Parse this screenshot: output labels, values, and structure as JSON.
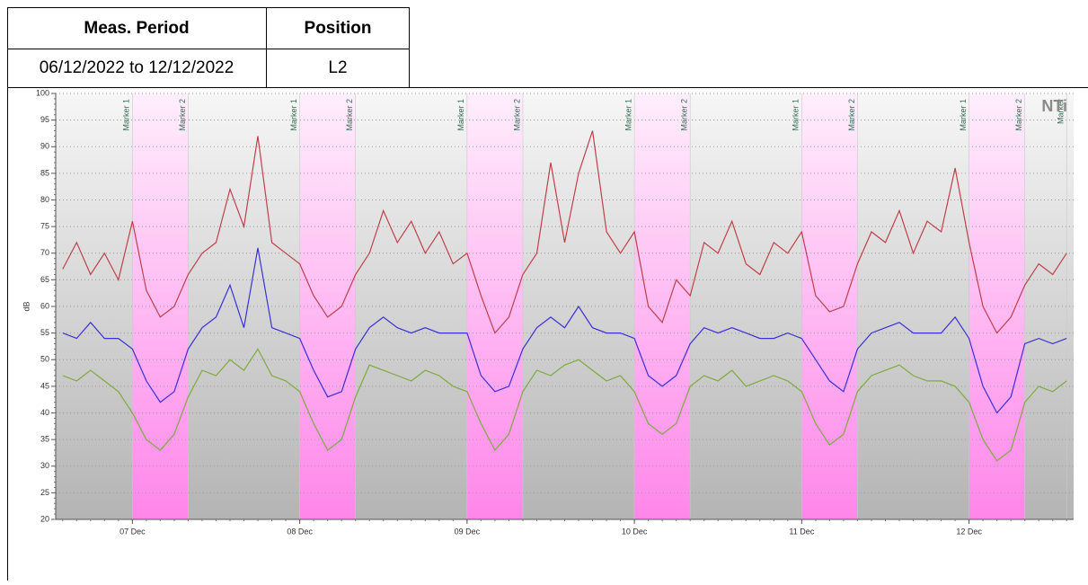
{
  "table": {
    "header": [
      "Meas. Period",
      "Position"
    ],
    "rows": [
      [
        "06/12/2022 to 12/12/2022",
        "L2"
      ]
    ]
  },
  "chart_data": {
    "type": "line",
    "ylabel": "dB",
    "logo": "NTi",
    "categories": [
      null,
      null,
      null,
      null,
      null,
      "07 Dec",
      null,
      null,
      null,
      null,
      null,
      null,
      null,
      null,
      null,
      null,
      null,
      "08 Dec",
      null,
      null,
      null,
      null,
      null,
      null,
      null,
      null,
      null,
      null,
      null,
      "09 Dec",
      null,
      null,
      null,
      null,
      null,
      null,
      null,
      null,
      null,
      null,
      null,
      "10 Dec",
      null,
      null,
      null,
      null,
      null,
      null,
      null,
      null,
      null,
      null,
      null,
      "11 Dec",
      null,
      null,
      null,
      null,
      null,
      null,
      null,
      null,
      null,
      null,
      null,
      "12 Dec",
      null,
      null,
      null,
      null,
      null,
      null,
      null
    ],
    "series": [
      {
        "color": "#c0404a",
        "values": [
          67,
          72,
          66,
          70,
          65,
          76,
          63,
          58,
          60,
          66,
          70,
          72,
          82,
          75,
          92,
          72,
          70,
          68,
          62,
          58,
          60,
          66,
          70,
          78,
          72,
          76,
          70,
          74,
          68,
          70,
          62,
          55,
          58,
          66,
          70,
          87,
          72,
          85,
          93,
          74,
          70,
          74,
          60,
          57,
          65,
          62,
          72,
          70,
          76,
          68,
          66,
          72,
          70,
          74,
          62,
          59,
          60,
          68,
          74,
          72,
          78,
          70,
          76,
          74,
          86,
          72,
          60,
          55,
          58,
          64,
          68,
          66,
          70
        ]
      },
      {
        "color": "#3a2fd8",
        "values": [
          55,
          54,
          57,
          54,
          54,
          52,
          46,
          42,
          44,
          52,
          56,
          58,
          64,
          56,
          71,
          56,
          55,
          54,
          48,
          43,
          44,
          52,
          56,
          58,
          56,
          55,
          56,
          55,
          55,
          55,
          47,
          44,
          45,
          52,
          56,
          58,
          56,
          60,
          56,
          55,
          55,
          54,
          47,
          45,
          47,
          53,
          56,
          55,
          56,
          55,
          54,
          54,
          55,
          54,
          50,
          46,
          44,
          52,
          55,
          56,
          57,
          55,
          55,
          55,
          58,
          54,
          45,
          40,
          43,
          53,
          54,
          53,
          54
        ]
      },
      {
        "color": "#7faa3c",
        "values": [
          47,
          46,
          48,
          46,
          44,
          40,
          35,
          33,
          36,
          43,
          48,
          47,
          50,
          48,
          52,
          47,
          46,
          44,
          38,
          33,
          35,
          43,
          49,
          48,
          47,
          46,
          48,
          47,
          45,
          44,
          38,
          33,
          36,
          44,
          48,
          47,
          49,
          50,
          48,
          46,
          47,
          44,
          38,
          36,
          38,
          45,
          47,
          46,
          48,
          45,
          46,
          47,
          46,
          44,
          38,
          34,
          36,
          44,
          47,
          48,
          49,
          47,
          46,
          46,
          45,
          42,
          35,
          31,
          33,
          42,
          45,
          44,
          46
        ]
      }
    ],
    "markers": [
      {
        "label": "Marker 1",
        "x": 5
      },
      {
        "label": "Marker 2",
        "x": 9
      },
      {
        "label": "Marker 1",
        "x": 17
      },
      {
        "label": "Marker 2",
        "x": 21
      },
      {
        "label": "Marker 1",
        "x": 29
      },
      {
        "label": "Marker 2",
        "x": 33
      },
      {
        "label": "Marker 1",
        "x": 41
      },
      {
        "label": "Marker 2",
        "x": 45
      },
      {
        "label": "Marker 1",
        "x": 53
      },
      {
        "label": "Marker 2",
        "x": 57
      },
      {
        "label": "Marker 1",
        "x": 65
      },
      {
        "label": "Marker 2",
        "x": 69
      },
      {
        "label": "Marker",
        "x": 72
      }
    ],
    "ylim": [
      20,
      100
    ],
    "yticks": [
      20,
      25,
      30,
      35,
      40,
      45,
      50,
      55,
      60,
      65,
      70,
      75,
      80,
      85,
      90,
      95,
      100
    ],
    "grid": true
  }
}
